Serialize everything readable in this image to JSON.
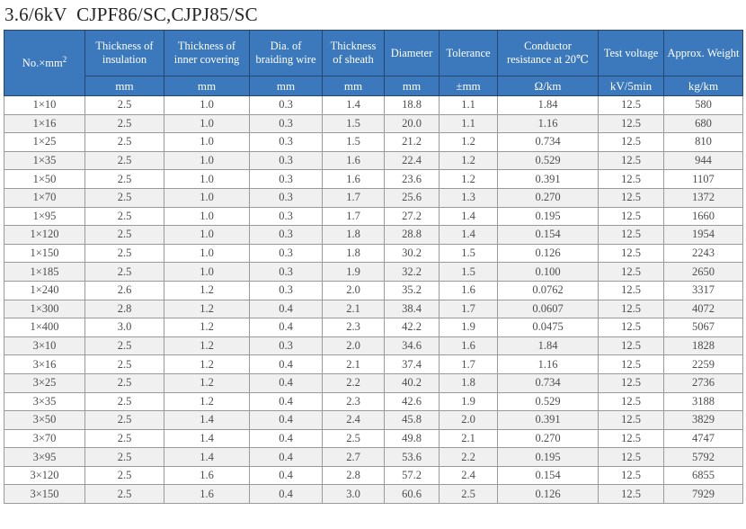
{
  "title": "3.6/6kV  CJPF86/SC,CJPJ85/SC",
  "colors": {
    "header_bg": "#3b79bc",
    "header_border": "#24466f",
    "header_divider": "#9dc2e4",
    "grid_line": "#9a9a9a",
    "row_stripe": "#f0f0f0",
    "body_text": "#4d4d4d",
    "title_text": "#262626"
  },
  "table": {
    "columns": [
      {
        "label_base": "No.×mm",
        "label_sup": "2",
        "unit": ""
      },
      {
        "label": "Thickness of insulation",
        "unit": "mm"
      },
      {
        "label": "Thickness of inner covering",
        "unit": "mm"
      },
      {
        "label": "Dia. of braiding wire",
        "unit": "mm"
      },
      {
        "label": "Thickness of sheath",
        "unit": "mm"
      },
      {
        "label": "Diameter",
        "unit": "mm"
      },
      {
        "label": "Tolerance",
        "unit": "±mm"
      },
      {
        "label": "Conductor resistance at 20℃",
        "unit": "Ω/km"
      },
      {
        "label": "Test voltage",
        "unit": "kV/5min"
      },
      {
        "label": "Approx. Weight",
        "unit": "kg/km"
      }
    ],
    "rows": [
      [
        "1×10",
        "2.5",
        "1.0",
        "0.3",
        "1.4",
        "18.8",
        "1.1",
        "1.84",
        "12.5",
        "580"
      ],
      [
        "1×16",
        "2.5",
        "1.0",
        "0.3",
        "1.5",
        "20.0",
        "1.1",
        "1.16",
        "12.5",
        "680"
      ],
      [
        "1×25",
        "2.5",
        "1.0",
        "0.3",
        "1.5",
        "21.2",
        "1.2",
        "0.734",
        "12.5",
        "810"
      ],
      [
        "1×35",
        "2.5",
        "1.0",
        "0.3",
        "1.6",
        "22.4",
        "1.2",
        "0.529",
        "12.5",
        "944"
      ],
      [
        "1×50",
        "2.5",
        "1.0",
        "0.3",
        "1.6",
        "23.6",
        "1.2",
        "0.391",
        "12.5",
        "1107"
      ],
      [
        "1×70",
        "2.5",
        "1.0",
        "0.3",
        "1.7",
        "25.6",
        "1.3",
        "0.270",
        "12.5",
        "1372"
      ],
      [
        "1×95",
        "2.5",
        "1.0",
        "0.3",
        "1.7",
        "27.2",
        "1.4",
        "0.195",
        "12.5",
        "1660"
      ],
      [
        "1×120",
        "2.5",
        "1.0",
        "0.3",
        "1.8",
        "28.8",
        "1.4",
        "0.154",
        "12.5",
        "1954"
      ],
      [
        "1×150",
        "2.5",
        "1.0",
        "0.3",
        "1.8",
        "30.2",
        "1.5",
        "0.126",
        "12.5",
        "2243"
      ],
      [
        "1×185",
        "2.5",
        "1.0",
        "0.3",
        "1.9",
        "32.2",
        "1.5",
        "0.100",
        "12.5",
        "2650"
      ],
      [
        "1×240",
        "2.6",
        "1.2",
        "0.3",
        "2.0",
        "35.2",
        "1.6",
        "0.0762",
        "12.5",
        "3317"
      ],
      [
        "1×300",
        "2.8",
        "1.2",
        "0.4",
        "2.1",
        "38.4",
        "1.7",
        "0.0607",
        "12.5",
        "4072"
      ],
      [
        "1×400",
        "3.0",
        "1.2",
        "0.4",
        "2.3",
        "42.2",
        "1.9",
        "0.0475",
        "12.5",
        "5067"
      ],
      [
        "3×10",
        "2.5",
        "1.2",
        "0.3",
        "2.0",
        "34.6",
        "1.6",
        "1.84",
        "12.5",
        "1828"
      ],
      [
        "3×16",
        "2.5",
        "1.2",
        "0.4",
        "2.1",
        "37.4",
        "1.7",
        "1.16",
        "12.5",
        "2259"
      ],
      [
        "3×25",
        "2.5",
        "1.2",
        "0.4",
        "2.2",
        "40.2",
        "1.8",
        "0.734",
        "12.5",
        "2736"
      ],
      [
        "3×35",
        "2.5",
        "1.2",
        "0.4",
        "2.3",
        "42.6",
        "1.9",
        "0.529",
        "12.5",
        "3188"
      ],
      [
        "3×50",
        "2.5",
        "1.4",
        "0.4",
        "2.4",
        "45.8",
        "2.0",
        "0.391",
        "12.5",
        "3829"
      ],
      [
        "3×70",
        "2.5",
        "1.4",
        "0.4",
        "2.5",
        "49.8",
        "2.1",
        "0.270",
        "12.5",
        "4747"
      ],
      [
        "3×95",
        "2.5",
        "1.4",
        "0.4",
        "2.7",
        "53.6",
        "2.2",
        "0.195",
        "12.5",
        "5792"
      ],
      [
        "3×120",
        "2.5",
        "1.6",
        "0.4",
        "2.8",
        "57.2",
        "2.4",
        "0.154",
        "12.5",
        "6855"
      ],
      [
        "3×150",
        "2.5",
        "1.6",
        "0.4",
        "3.0",
        "60.6",
        "2.5",
        "0.126",
        "12.5",
        "7929"
      ]
    ]
  }
}
